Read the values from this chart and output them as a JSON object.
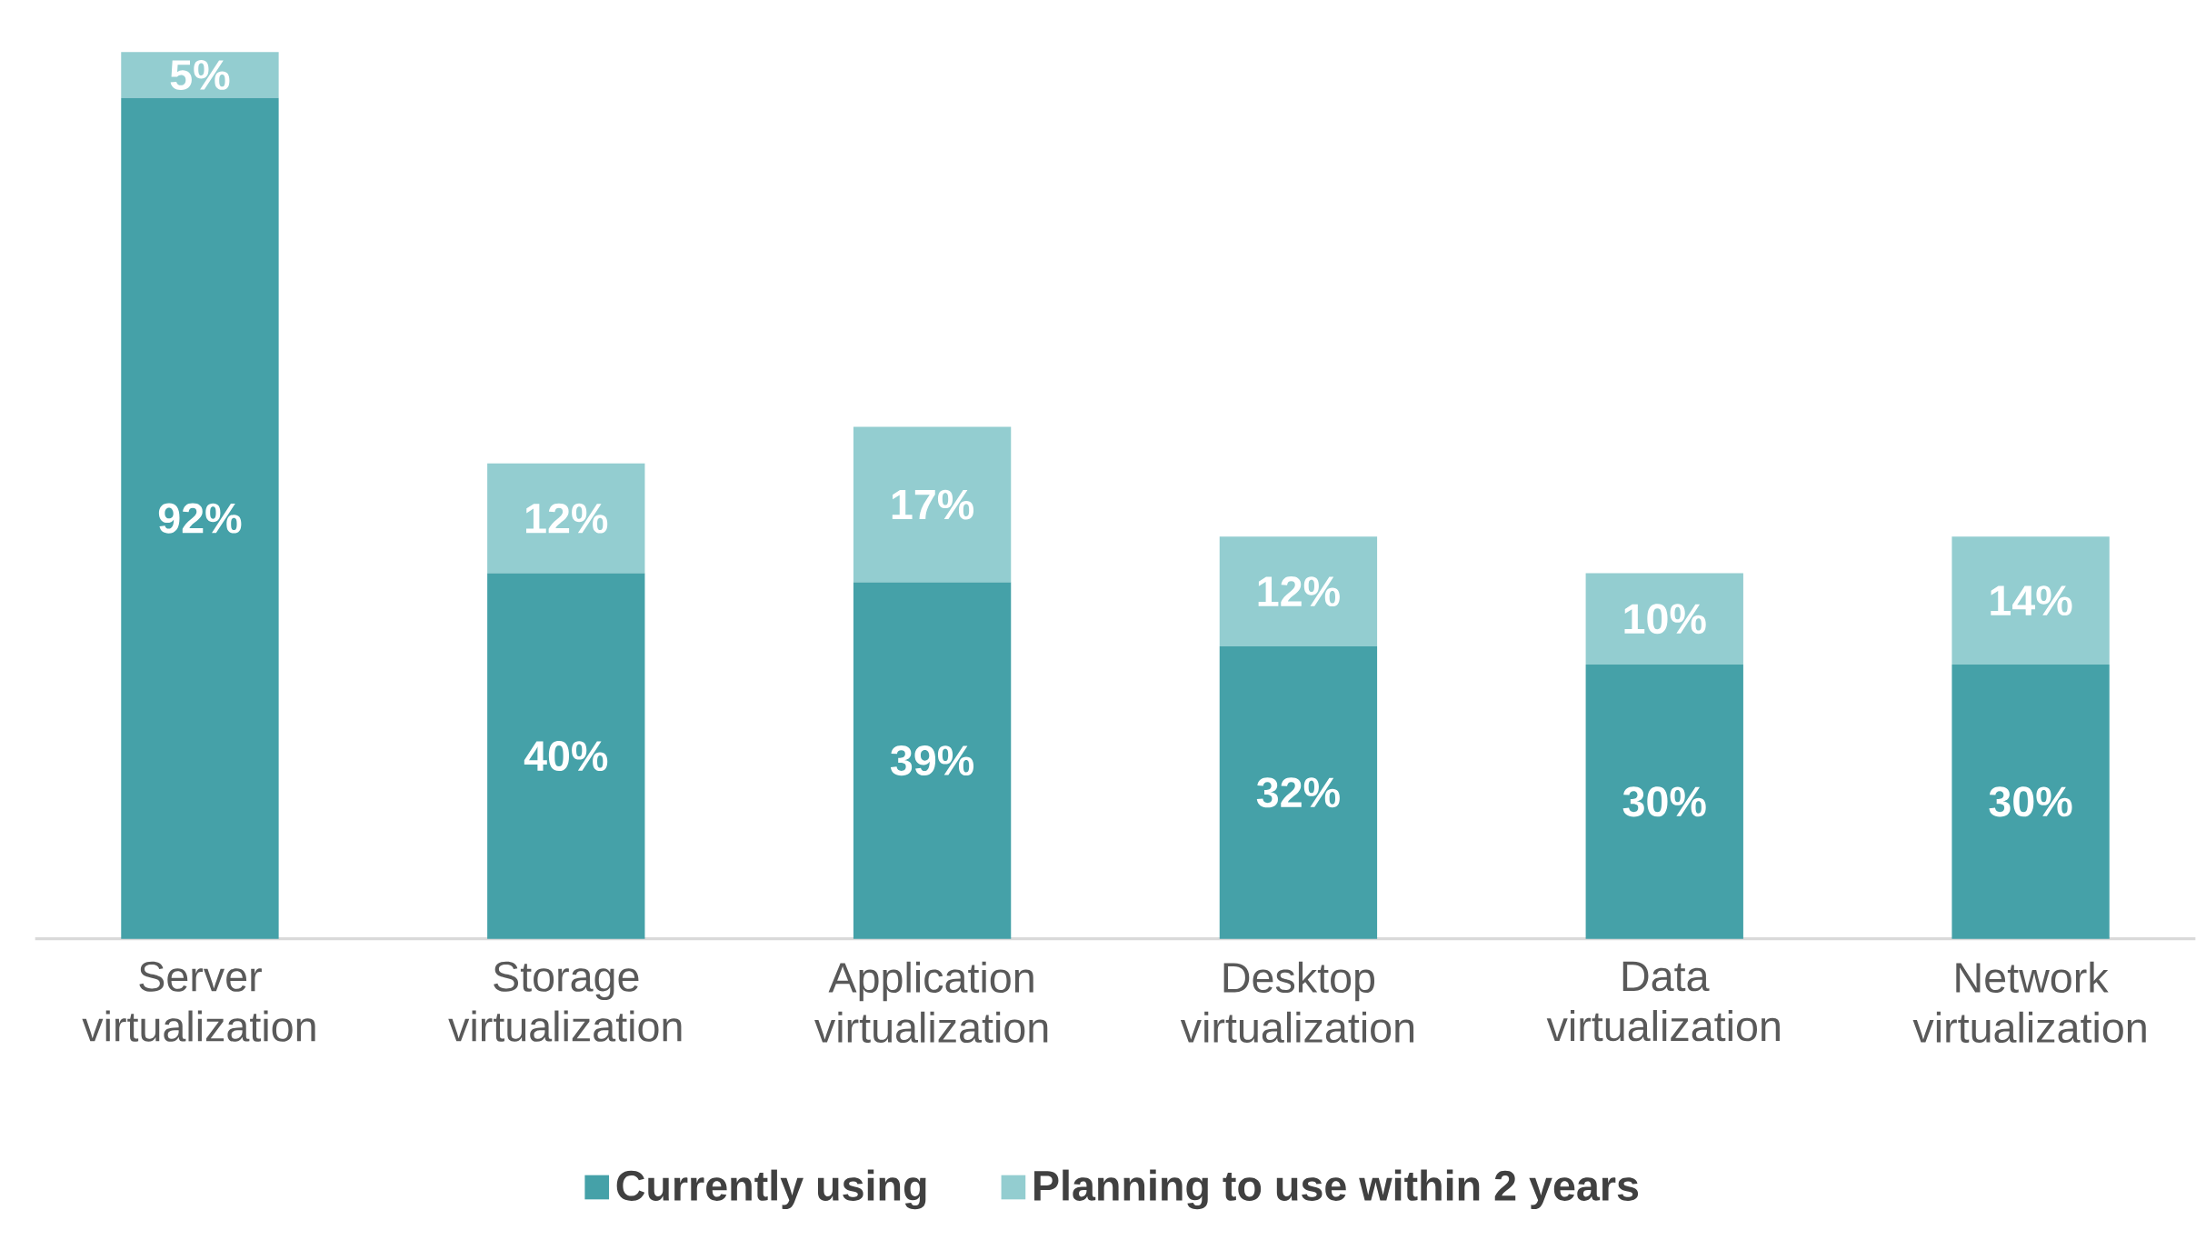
{
  "chart_data": {
    "type": "bar",
    "stacked": true,
    "legend": "bottom",
    "categories": [
      "Server virtualization",
      "Storage virtualization",
      "Application virtualization",
      "Desktop virtualization",
      "Data virtualization",
      "Network virtualization"
    ],
    "series": [
      {
        "name": "Currently using",
        "color": "#45a1a8",
        "values": [
          92,
          40,
          39,
          32,
          30,
          30
        ],
        "value_labels": [
          "92%",
          "40%",
          "39%",
          "32%",
          "30%",
          "30%"
        ]
      },
      {
        "name": "Planning to use within 2 years",
        "color": "#93cdd0",
        "values": [
          5,
          12,
          17,
          12,
          10,
          14
        ],
        "value_labels": [
          "5%",
          "12%",
          "17%",
          "12%",
          "10%",
          "14%"
        ]
      }
    ]
  }
}
